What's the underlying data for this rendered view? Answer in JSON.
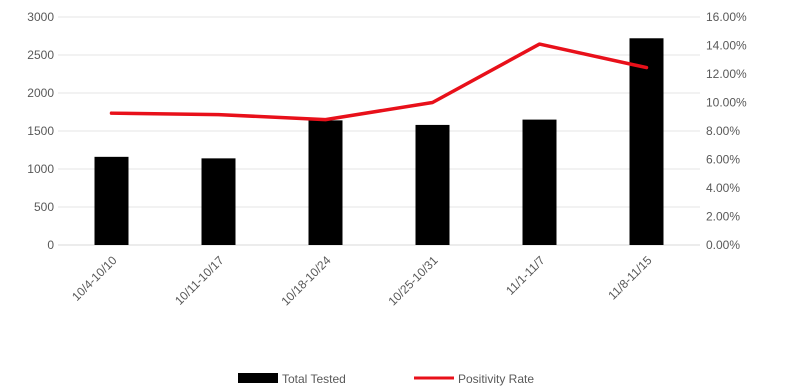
{
  "chart_data": {
    "type": "bar",
    "categories": [
      "10/4-10/10",
      "10/11-10/17",
      "10/18-10/24",
      "10/25-10/31",
      "11/1-11/7",
      "11/8-11/15"
    ],
    "series": [
      {
        "name": "Total Tested",
        "type": "bar",
        "axis": "left",
        "color": "#000000",
        "values": [
          1160,
          1140,
          1640,
          1580,
          1650,
          2720
        ]
      },
      {
        "name": "Positivity Rate",
        "type": "line",
        "axis": "right",
        "color": "#e8101a",
        "values": [
          0.0925,
          0.0915,
          0.088,
          0.1,
          0.141,
          0.1245
        ]
      }
    ],
    "y_left": {
      "lim": [
        0,
        3000
      ],
      "ticks": [
        0,
        500,
        1000,
        1500,
        2000,
        2500,
        3000
      ],
      "tick_labels": [
        "0",
        "500",
        "1000",
        "1500",
        "2000",
        "2500",
        "3000"
      ]
    },
    "y_right": {
      "lim": [
        0,
        0.16
      ],
      "ticks": [
        0,
        0.02,
        0.04,
        0.06,
        0.08,
        0.1,
        0.12,
        0.14,
        0.16
      ],
      "tick_labels": [
        "0.00%",
        "2.00%",
        "4.00%",
        "6.00%",
        "8.00%",
        "10.00%",
        "12.00%",
        "14.00%",
        "16.00%"
      ]
    },
    "grid": true,
    "legend_position": "bottom-center",
    "title": "",
    "xlabel": "",
    "ylabel": ""
  }
}
